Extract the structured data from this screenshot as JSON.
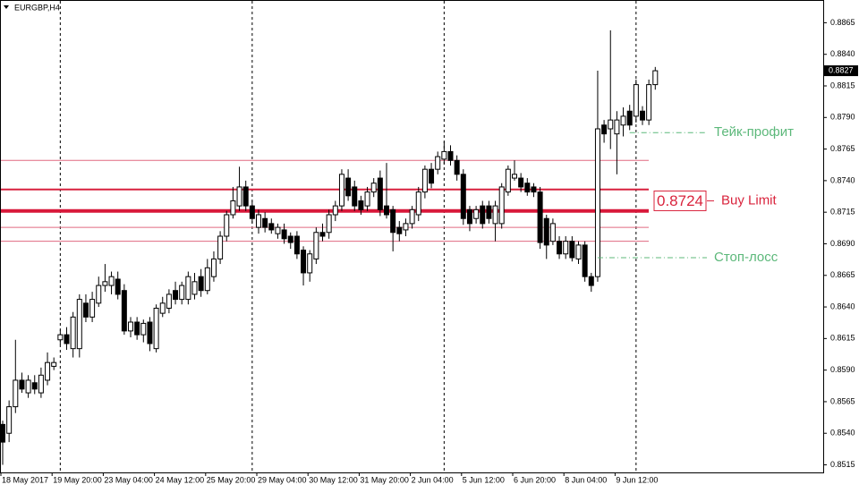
{
  "chart_data": {
    "type": "candlestick",
    "title": "EURGBP,H4",
    "categories": [
      "18 May 2017",
      null,
      null,
      null,
      null,
      null,
      null,
      null,
      "19 May 20:00",
      null,
      null,
      null,
      null,
      null,
      null,
      null,
      "23 May 04:00",
      null,
      null,
      null,
      null,
      null,
      null,
      null,
      "24 May 12:00",
      null,
      null,
      null,
      null,
      null,
      null,
      null,
      "25 May 20:00",
      null,
      null,
      null,
      null,
      null,
      null,
      null,
      "29 May 04:00",
      null,
      null,
      null,
      null,
      null,
      null,
      null,
      "30 May 12:00",
      null,
      null,
      null,
      null,
      null,
      null,
      null,
      "31 May 20:00",
      null,
      null,
      null,
      null,
      null,
      null,
      null,
      "2 Jun 04:00",
      null,
      null,
      null,
      null,
      null,
      null,
      null,
      "5 Jun 12:00",
      null,
      null,
      null,
      null,
      null,
      null,
      null,
      "6 Jun 20:00",
      null,
      null,
      null,
      null,
      null,
      null,
      null,
      "8 Jun 04:00",
      null,
      null,
      null,
      null,
      null,
      null,
      null,
      "9 Jun 12:00",
      null,
      null,
      null,
      null,
      null,
      null
    ],
    "open": [
      0.8547,
      0.854,
      0.8561,
      0.8582,
      0.8572,
      0.858,
      0.8572,
      0.8582,
      0.8593,
      0.8614,
      0.8618,
      0.8607,
      0.8607,
      0.8643,
      0.8632,
      0.8643,
      0.8657,
      0.8657,
      0.8662,
      0.8653,
      0.8621,
      0.8628,
      0.8618,
      0.8628,
      0.8607,
      0.8635,
      0.8639,
      0.8653,
      0.8646,
      0.8646,
      0.865,
      0.8664,
      0.8653,
      0.8664,
      0.8678,
      0.8696,
      0.8713,
      0.872,
      0.8735,
      0.872,
      0.8703,
      0.871,
      0.8706,
      0.8698,
      0.8701,
      0.8696,
      0.8696,
      0.8685,
      0.8667,
      0.8678,
      0.8699,
      0.8699,
      0.8713,
      0.872,
      0.8742,
      0.8735,
      0.8724,
      0.872,
      0.8731,
      0.8742,
      0.872,
      0.8717,
      0.8703,
      0.8701,
      0.8706,
      0.8713,
      0.8731,
      0.8749,
      0.8749,
      0.8757,
      0.8763,
      0.8756,
      0.8745,
      0.8717,
      0.871,
      0.872,
      0.872,
      0.8706,
      0.8706,
      0.8731,
      0.8742,
      0.8742,
      0.8738,
      0.8735,
      0.8731,
      0.871,
      0.8692,
      0.8692,
      0.8682,
      0.8692,
      0.8678,
      0.8689,
      0.8664,
      0.8664,
      0.8784,
      0.8781,
      0.8777,
      0.8784,
      0.8795,
      0.8791,
      0.8795,
      0.8788,
      0.8816
    ],
    "high": [
      0.855,
      0.8566,
      0.8614,
      0.8588,
      0.8586,
      0.8586,
      0.8592,
      0.8604,
      0.86,
      0.8622,
      0.8624,
      0.8636,
      0.865,
      0.865,
      0.8652,
      0.8664,
      0.8674,
      0.8668,
      0.8668,
      0.8658,
      0.8632,
      0.8632,
      0.863,
      0.8632,
      0.8642,
      0.8648,
      0.8654,
      0.866,
      0.866,
      0.8668,
      0.8667,
      0.867,
      0.8678,
      0.8684,
      0.87,
      0.8716,
      0.8735,
      0.8751,
      0.874,
      0.8724,
      0.8717,
      0.8715,
      0.871,
      0.8706,
      0.8706,
      0.8699,
      0.87,
      0.8688,
      0.8685,
      0.8703,
      0.8706,
      0.8717,
      0.8724,
      0.8749,
      0.8749,
      0.874,
      0.8728,
      0.8735,
      0.8742,
      0.8748,
      0.8754,
      0.872,
      0.8708,
      0.871,
      0.872,
      0.8735,
      0.8752,
      0.8754,
      0.8763,
      0.8771,
      0.8768,
      0.876,
      0.8749,
      0.872,
      0.872,
      0.8724,
      0.8724,
      0.8724,
      0.8738,
      0.8752,
      0.8756,
      0.8746,
      0.8742,
      0.8738,
      0.8735,
      0.8713,
      0.871,
      0.8696,
      0.8696,
      0.8696,
      0.8692,
      0.8692,
      0.8667,
      0.8827,
      0.8788,
      0.8859,
      0.8795,
      0.8798,
      0.88,
      0.882,
      0.8799,
      0.882,
      0.883
    ],
    "low": [
      0.8515,
      0.8533,
      0.8556,
      0.8572,
      0.8568,
      0.8571,
      0.8568,
      0.8578,
      0.859,
      0.861,
      0.8606,
      0.86,
      0.86,
      0.8628,
      0.8628,
      0.864,
      0.8652,
      0.865,
      0.8646,
      0.8618,
      0.8616,
      0.8614,
      0.8612,
      0.8605,
      0.8604,
      0.8632,
      0.8635,
      0.8642,
      0.8642,
      0.8642,
      0.8646,
      0.8648,
      0.865,
      0.866,
      0.8674,
      0.8692,
      0.871,
      0.8716,
      0.8716,
      0.8706,
      0.8698,
      0.8699,
      0.8698,
      0.8694,
      0.869,
      0.8686,
      0.8678,
      0.8657,
      0.866,
      0.8674,
      0.8692,
      0.8694,
      0.8708,
      0.8716,
      0.8724,
      0.8716,
      0.8713,
      0.8716,
      0.8727,
      0.8712,
      0.871,
      0.8684,
      0.8692,
      0.8696,
      0.8702,
      0.8708,
      0.8726,
      0.8734,
      0.8745,
      0.8753,
      0.8752,
      0.874,
      0.8705,
      0.87,
      0.8706,
      0.8702,
      0.8706,
      0.8692,
      0.8702,
      0.8728,
      0.874,
      0.8731,
      0.8728,
      0.8727,
      0.8686,
      0.8678,
      0.8689,
      0.8678,
      0.8678,
      0.8676,
      0.8674,
      0.866,
      0.8652,
      0.866,
      0.877,
      0.8765,
      0.8745,
      0.8775,
      0.878,
      0.8786,
      0.8784,
      0.8784,
      0.8812
    ],
    "close": [
      0.8533,
      0.8561,
      0.8582,
      0.8575,
      0.8582,
      0.8575,
      0.8586,
      0.8596,
      0.8596,
      0.8618,
      0.8611,
      0.8632,
      0.8646,
      0.8632,
      0.8646,
      0.8657,
      0.866,
      0.8664,
      0.865,
      0.8621,
      0.8628,
      0.8618,
      0.8627,
      0.8611,
      0.8639,
      0.8643,
      0.865,
      0.8646,
      0.8657,
      0.8664,
      0.866,
      0.8653,
      0.8671,
      0.8678,
      0.8696,
      0.8713,
      0.8724,
      0.8735,
      0.872,
      0.871,
      0.8713,
      0.8703,
      0.8701,
      0.8703,
      0.8694,
      0.8691,
      0.8682,
      0.8667,
      0.8682,
      0.8699,
      0.8696,
      0.8713,
      0.872,
      0.8745,
      0.8728,
      0.872,
      0.8717,
      0.8731,
      0.8738,
      0.8717,
      0.8713,
      0.8699,
      0.8698,
      0.8706,
      0.8717,
      0.8731,
      0.8749,
      0.8738,
      0.8759,
      0.8763,
      0.8756,
      0.8745,
      0.871,
      0.8706,
      0.8717,
      0.8706,
      0.871,
      0.872,
      0.8735,
      0.8749,
      0.8745,
      0.8735,
      0.8731,
      0.8731,
      0.8691,
      0.8689,
      0.8706,
      0.8682,
      0.8692,
      0.8679,
      0.8689,
      0.8664,
      0.8657,
      0.8781,
      0.8777,
      0.8788,
      0.8788,
      0.8791,
      0.8784,
      0.8816,
      0.8788,
      0.8816,
      0.8827
    ],
    "ylim": [
      0.8509,
      0.8883
    ],
    "yticks": [
      0.8515,
      {
        "value": 0.854,
        "label": "0.8540"
      },
      0.8565,
      {
        "value": 0.859,
        "label": "0.8590"
      },
      0.8615,
      {
        "value": 0.864,
        "label": "0.8640"
      },
      0.8665,
      {
        "value": 0.869,
        "label": "0.8690"
      },
      0.8715,
      {
        "value": 0.874,
        "label": "0.8740"
      },
      0.8765,
      {
        "value": 0.879,
        "label": "0.8790"
      },
      0.8815,
      {
        "value": 0.884,
        "label": "0.8840"
      },
      0.8865
    ],
    "last_price": 0.8827,
    "levels": [
      {
        "value": 0.8756,
        "color": "#e06a80",
        "width": 1
      },
      {
        "value": 0.8733,
        "color": "#d8203e",
        "width": 2
      },
      {
        "value": 0.8716,
        "color": "#d8183a",
        "width": 4
      },
      {
        "value": 0.8703,
        "color": "#e06a80",
        "width": 1
      },
      {
        "value": 0.8692,
        "color": "#e06a80",
        "width": 1
      }
    ],
    "order": {
      "label": "Buy Limit",
      "price": 0.8724,
      "color": "#d9243d"
    },
    "targets": [
      {
        "label": "Тейк-профит",
        "price": 0.8778
      },
      {
        "label": "Стоп-лосс",
        "price": 0.8679
      }
    ],
    "target_color": "#5cb87a"
  }
}
